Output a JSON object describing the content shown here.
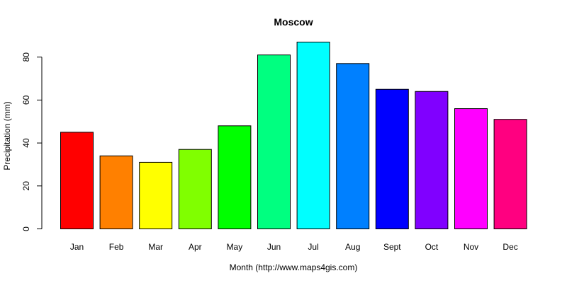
{
  "chart_data": {
    "type": "bar",
    "title": "Moscow",
    "xlabel": "Month (http://www.maps4gis.com)",
    "ylabel": "Precipitation (mm)",
    "categories": [
      "Jan",
      "Feb",
      "Mar",
      "Apr",
      "May",
      "Jun",
      "Jul",
      "Aug",
      "Sept",
      "Oct",
      "Nov",
      "Dec"
    ],
    "values": [
      45,
      34,
      31,
      37,
      48,
      81,
      87,
      77,
      65,
      64,
      56,
      51
    ],
    "colors": [
      "#ff0000",
      "#ff8000",
      "#ffff00",
      "#80ff00",
      "#00ff00",
      "#00ff80",
      "#00ffff",
      "#0080ff",
      "#0000ff",
      "#8000ff",
      "#ff00ff",
      "#ff0080"
    ],
    "yticks": [
      0,
      20,
      40,
      60,
      80
    ],
    "ylim": [
      0,
      87
    ],
    "grid": false,
    "legend": "none"
  }
}
